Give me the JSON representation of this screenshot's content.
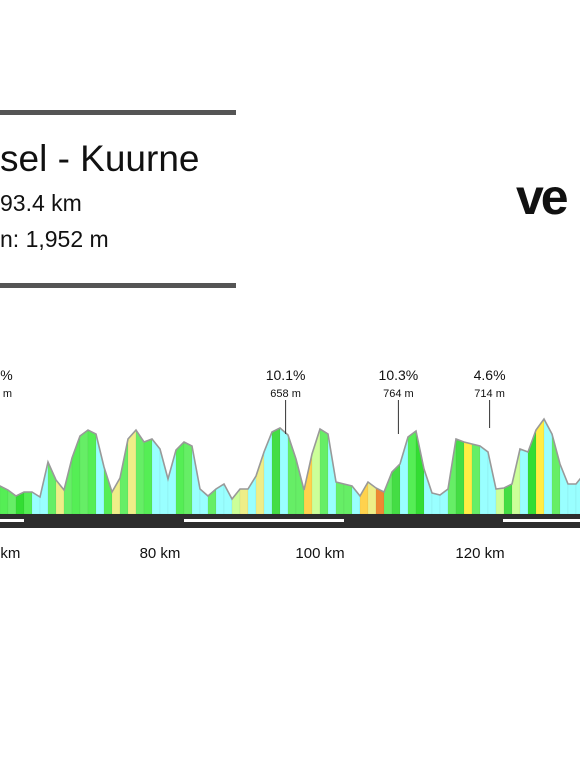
{
  "header": {
    "title": "sel - Kuurne",
    "distance": "93.4 km",
    "elevation": "n: 1,952 m",
    "logo_text": "ve"
  },
  "chart_data": {
    "type": "area",
    "title": "",
    "xlabel": "",
    "ylabel": "",
    "xlim": [
      47,
      133.5
    ],
    "ylim": [
      0,
      120
    ],
    "x_ticks": [
      60,
      80,
      100,
      120
    ],
    "x_tick_labels": [
      "60 km",
      "80 km",
      "100 km",
      "120 km"
    ],
    "series": [
      {
        "x": [
          47,
          48,
          49,
          50,
          51,
          52,
          53,
          54,
          55,
          56,
          57,
          58,
          59,
          60,
          61,
          62,
          63,
          64,
          65,
          66,
          67,
          68,
          69,
          70,
          71,
          72,
          73,
          74,
          75,
          76,
          77,
          78,
          79,
          80,
          81,
          82,
          83,
          84,
          85,
          86,
          87,
          88,
          89,
          90,
          91,
          92,
          93,
          94,
          95,
          96,
          97,
          98,
          99,
          100,
          101,
          102,
          103,
          104,
          105,
          106,
          107,
          108,
          109,
          110,
          111,
          112,
          113,
          114,
          115,
          116,
          117,
          118,
          119,
          120,
          121,
          122,
          123,
          124,
          125,
          126,
          127,
          128,
          129,
          130,
          131,
          132,
          133,
          133.5
        ],
        "y": [
          60,
          66,
          62,
          60,
          58,
          70,
          58,
          24,
          16,
          16,
          25,
          28,
          30,
          28,
          24,
          18,
          22,
          22,
          17,
          52,
          34,
          24,
          56,
          78,
          84,
          80,
          47,
          22,
          36,
          75,
          84,
          72,
          75,
          65,
          35,
          64,
          72,
          68,
          25,
          18,
          25,
          30,
          15,
          25,
          25,
          38,
          62,
          82,
          86,
          79,
          55,
          24,
          60,
          85,
          80,
          32,
          30,
          28,
          18,
          32,
          26,
          22,
          42,
          50,
          77,
          83,
          45,
          21,
          19,
          25,
          75,
          72,
          70,
          68,
          62,
          25,
          26,
          30,
          65,
          62,
          84,
          95,
          80,
          50,
          30,
          30,
          40,
          66
        ],
        "colors": [
          "#66ee66",
          "#55ee55",
          "#99ffff",
          "#99ffff",
          "#99ffff",
          "#66ee66",
          "#99ffff",
          "#99ffff",
          "#66ee66",
          "#44dd44",
          "#33dd33",
          "#44dd44",
          "#66ee66",
          "#55ee55",
          "#66ee66",
          "#33dd33",
          "#55ee55",
          "#99ffff",
          "#99ffff",
          "#66ee66",
          "#eeee88",
          "#66ee66",
          "#55ee55",
          "#66ee66",
          "#55ee55",
          "#99ffff",
          "#55ee55",
          "#eeee88",
          "#66ee66",
          "#eeee88",
          "#66ee66",
          "#55ee55",
          "#99ffff",
          "#99ffff",
          "#99ffff",
          "#55ee55",
          "#66ee66",
          "#99ffff",
          "#99ffff",
          "#66ee66",
          "#99ffff",
          "#99ffff",
          "#ccff99",
          "#eeee88",
          "#99ffff",
          "#eeee88",
          "#99ffff",
          "#44dd44",
          "#99ffff",
          "#66ee66",
          "#66ee66",
          "#ffd24d",
          "#ccff99",
          "#66ee66",
          "#99ffff",
          "#66ee66",
          "#66ee66",
          "#99ffff",
          "#ffd24d",
          "#eeee88",
          "#ee8833",
          "#66ee66",
          "#44dd44",
          "#99ffff",
          "#55ee55",
          "#33dd33",
          "#99ffff",
          "#99ffff",
          "#99ffff",
          "#66ee66",
          "#44dd44",
          "#ffee44",
          "#66ee66",
          "#99ffff",
          "#99ffff",
          "#ccff99",
          "#44dd44",
          "#ccff99",
          "#99ffff",
          "#33dd33",
          "#ffee44",
          "#99ffff",
          "#66ee66",
          "#99ffff",
          "#99ffff",
          "#99ffff",
          "#ccff99"
        ]
      }
    ],
    "markers": [
      {
        "x": 48.5,
        "value": 60,
        "grade": "5.8%",
        "elev": ".1 km"
      },
      {
        "x": 59.6,
        "value": 75,
        "grade": "8.9%",
        "elev": "549 m"
      },
      {
        "x": 95.7,
        "value": 80,
        "grade": "10.1%",
        "elev": "658 m"
      },
      {
        "x": 109.8,
        "value": 80,
        "grade": "10.3%",
        "elev": "764 m"
      },
      {
        "x": 121.2,
        "value": 86,
        "grade": "4.6%",
        "elev": "714 m"
      }
    ],
    "grid": false
  }
}
